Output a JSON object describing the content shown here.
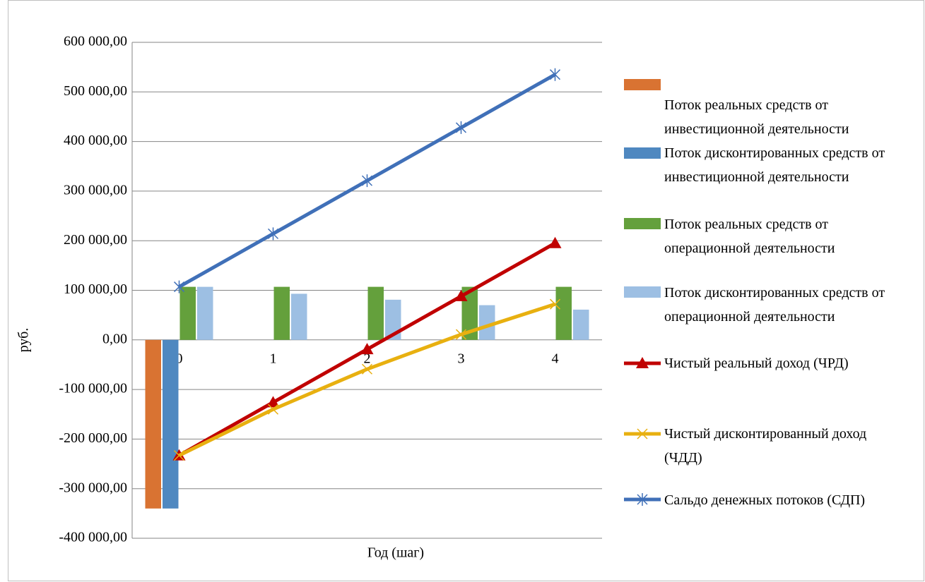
{
  "chart_data": {
    "type": "bar",
    "x_label": "Год (шаг)",
    "y_label": "руб.",
    "categories": [
      "0",
      "1",
      "2",
      "3",
      "4"
    ],
    "ylim": [
      -400000,
      600000
    ],
    "yticks": [
      {
        "value": -400000,
        "label": "-400 000,00"
      },
      {
        "value": -300000,
        "label": "-300 000,00"
      },
      {
        "value": -200000,
        "label": "-200 000,00"
      },
      {
        "value": -100000,
        "label": "-100 000,00"
      },
      {
        "value": 0,
        "label": "0,00"
      },
      {
        "value": 100000,
        "label": "100 000,00"
      },
      {
        "value": 200000,
        "label": "200 000,00"
      },
      {
        "value": 300000,
        "label": "300 000,00"
      },
      {
        "value": 400000,
        "label": "400 000,00"
      },
      {
        "value": 500000,
        "label": "500 000,00"
      },
      {
        "value": 600000,
        "label": "600 000,00"
      }
    ],
    "grid": true,
    "legend": "right",
    "series": [
      {
        "name": "Поток реальных средств от инвестиционной деятельности",
        "type": "bar",
        "color": "#d97332",
        "values": [
          -340000,
          null,
          null,
          null,
          null
        ]
      },
      {
        "name": "Поток дисконтированных средств от инвестиционной деятельности",
        "type": "bar",
        "color": "#4f88c0",
        "values": [
          -340000,
          null,
          null,
          null,
          null
        ]
      },
      {
        "name": "Поток реальных средств от операционной деятельности",
        "type": "bar",
        "color": "#64a03c",
        "values": [
          107000,
          107000,
          107000,
          107000,
          107000
        ]
      },
      {
        "name": "Поток дисконтированных средств от операционной деятельности",
        "type": "bar",
        "color": "#9dbfe3",
        "values": [
          107000,
          93000,
          81000,
          70000,
          61000
        ]
      },
      {
        "name": "Чистый реальный доход (ЧРД)",
        "type": "line",
        "marker": "triangle",
        "color": "#c00000",
        "values": [
          -233000,
          -126000,
          -19000,
          88000,
          195000
        ]
      },
      {
        "name": "Чистый дисконтированный доход (ЧДД)",
        "type": "line",
        "marker": "x",
        "color": "#e8b010",
        "values": [
          -233000,
          -140000,
          -59000,
          11000,
          72000
        ]
      },
      {
        "name": "Сальдо денежных потоков (СДП)",
        "type": "line",
        "marker": "star",
        "color": "#4070b8",
        "values": [
          107000,
          214000,
          321000,
          428000,
          535000
        ]
      }
    ]
  }
}
